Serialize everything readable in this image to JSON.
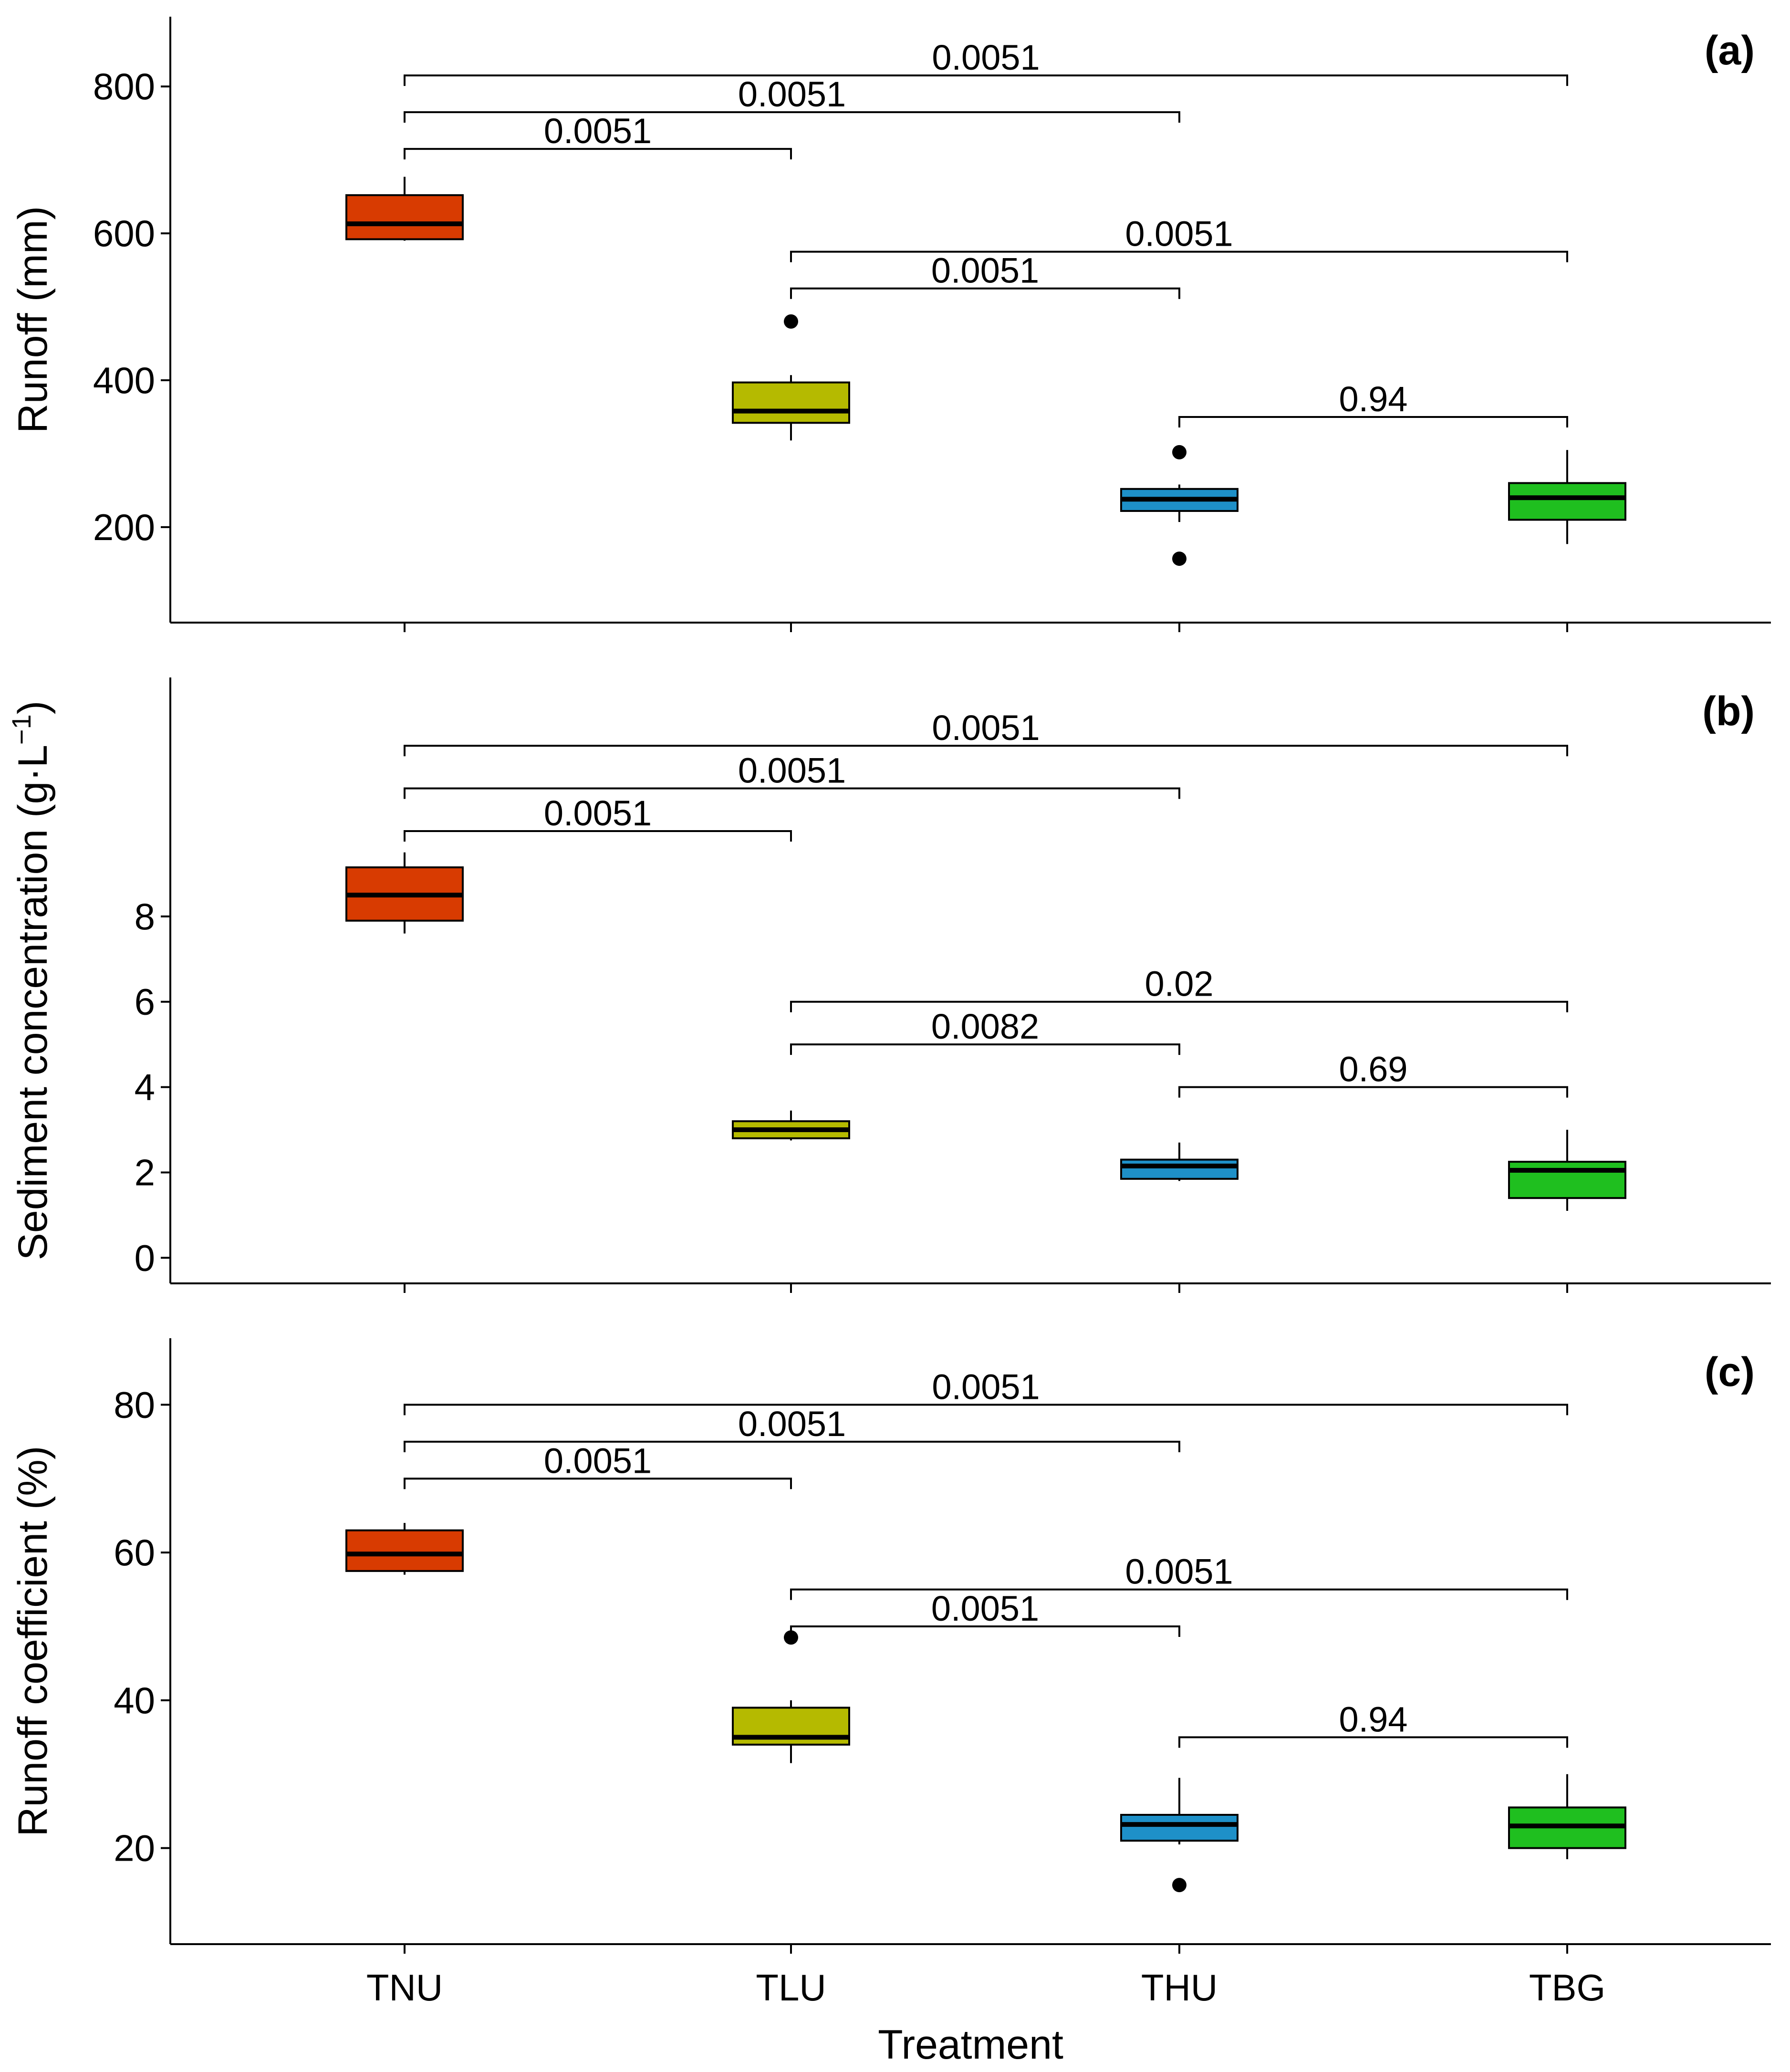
{
  "chart_data": [
    {
      "type": "boxplot",
      "panel_label": "(a)",
      "ylabel": "Runoff (mm)",
      "xlabel": "",
      "ylim": [
        70,
        895
      ],
      "yticks": [
        200,
        400,
        600,
        800
      ],
      "categories": [
        "TNU",
        "TLU",
        "THU",
        "TBG"
      ],
      "colors": [
        "#D83B01",
        "#B5BA00",
        "#1E90C8",
        "#1FBF1F"
      ],
      "boxes": [
        {
          "category": "TNU",
          "whisker_low": 590,
          "q1": 592,
          "median": 613,
          "q3": 652,
          "whisker_high": 677,
          "outliers": []
        },
        {
          "category": "TLU",
          "whisker_low": 318,
          "q1": 342,
          "median": 358,
          "q3": 397,
          "whisker_high": 407,
          "outliers": [
            480
          ]
        },
        {
          "category": "THU",
          "whisker_low": 207,
          "q1": 222,
          "median": 238,
          "q3": 252,
          "whisker_high": 258,
          "outliers": [
            302,
            157
          ]
        },
        {
          "category": "TBG",
          "whisker_low": 177,
          "q1": 210,
          "median": 240,
          "q3": 260,
          "whisker_high": 305,
          "outliers": []
        }
      ],
      "comparisons": [
        {
          "from": "TNU",
          "to": "TBG",
          "label": "0.0051",
          "y": 815
        },
        {
          "from": "TNU",
          "to": "THU",
          "label": "0.0051",
          "y": 765
        },
        {
          "from": "TNU",
          "to": "TLU",
          "label": "0.0051",
          "y": 715
        },
        {
          "from": "TLU",
          "to": "TBG",
          "label": "0.0051",
          "y": 575
        },
        {
          "from": "TLU",
          "to": "THU",
          "label": "0.0051",
          "y": 525
        },
        {
          "from": "THU",
          "to": "TBG",
          "label": "0.94",
          "y": 350
        }
      ]
    },
    {
      "type": "boxplot",
      "panel_label": "(b)",
      "ylabel": "Sediment concentration (g·L⁻¹)",
      "xlabel": "",
      "ylim": [
        -0.6,
        13.6
      ],
      "yticks": [
        0,
        2,
        4,
        6,
        8
      ],
      "categories": [
        "TNU",
        "TLU",
        "THU",
        "TBG"
      ],
      "colors": [
        "#D83B01",
        "#B5BA00",
        "#1E90C8",
        "#1FBF1F"
      ],
      "boxes": [
        {
          "category": "TNU",
          "whisker_low": 7.6,
          "q1": 7.9,
          "median": 8.5,
          "q3": 9.15,
          "whisker_high": 9.5,
          "outliers": []
        },
        {
          "category": "TLU",
          "whisker_low": 2.75,
          "q1": 2.8,
          "median": 3.0,
          "q3": 3.2,
          "whisker_high": 3.45,
          "outliers": []
        },
        {
          "category": "THU",
          "whisker_low": 1.8,
          "q1": 1.85,
          "median": 2.15,
          "q3": 2.3,
          "whisker_high": 2.7,
          "outliers": []
        },
        {
          "category": "TBG",
          "whisker_low": 1.1,
          "q1": 1.4,
          "median": 2.05,
          "q3": 2.25,
          "whisker_high": 3.0,
          "outliers": []
        }
      ],
      "comparisons": [
        {
          "from": "TNU",
          "to": "TBG",
          "label": "0.0051",
          "y": 12.0
        },
        {
          "from": "TNU",
          "to": "THU",
          "label": "0.0051",
          "y": 11.0
        },
        {
          "from": "TNU",
          "to": "TLU",
          "label": "0.0051",
          "y": 10.0
        },
        {
          "from": "TLU",
          "to": "TBG",
          "label": "0.02",
          "y": 6.0
        },
        {
          "from": "TLU",
          "to": "THU",
          "label": "0.0082",
          "y": 5.0
        },
        {
          "from": "THU",
          "to": "TBG",
          "label": "0.69",
          "y": 4.0
        }
      ]
    },
    {
      "type": "boxplot",
      "panel_label": "(c)",
      "ylabel": "Runoff coefficient (%)",
      "xlabel": "Treatment",
      "ylim": [
        7,
        89
      ],
      "yticks": [
        20,
        40,
        60,
        80
      ],
      "categories": [
        "TNU",
        "TLU",
        "THU",
        "TBG"
      ],
      "colors": [
        "#D83B01",
        "#B5BA00",
        "#1E90C8",
        "#1FBF1F"
      ],
      "boxes": [
        {
          "category": "TNU",
          "whisker_low": 57,
          "q1": 57.5,
          "median": 59.8,
          "q3": 63,
          "whisker_high": 64,
          "outliers": []
        },
        {
          "category": "TLU",
          "whisker_low": 31.5,
          "q1": 34,
          "median": 35,
          "q3": 39,
          "whisker_high": 40,
          "outliers": [
            48.5
          ]
        },
        {
          "category": "THU",
          "whisker_low": 20.5,
          "q1": 21,
          "median": 23.2,
          "q3": 24.5,
          "whisker_high": 29.5,
          "outliers": [
            15
          ]
        },
        {
          "category": "TBG",
          "whisker_low": 18.5,
          "q1": 20,
          "median": 23,
          "q3": 25.5,
          "whisker_high": 30,
          "outliers": []
        }
      ],
      "comparisons": [
        {
          "from": "TNU",
          "to": "TBG",
          "label": "0.0051",
          "y": 80
        },
        {
          "from": "TNU",
          "to": "THU",
          "label": "0.0051",
          "y": 75
        },
        {
          "from": "TNU",
          "to": "TLU",
          "label": "0.0051",
          "y": 70
        },
        {
          "from": "TLU",
          "to": "TBG",
          "label": "0.0051",
          "y": 55
        },
        {
          "from": "TLU",
          "to": "THU",
          "label": "0.0051",
          "y": 50
        },
        {
          "from": "THU",
          "to": "TBG",
          "label": "0.94",
          "y": 35
        }
      ]
    }
  ]
}
